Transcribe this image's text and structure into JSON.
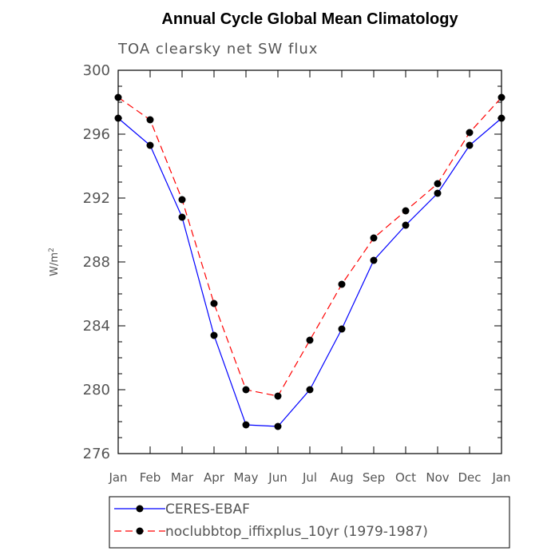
{
  "chart_data": {
    "type": "line",
    "title": "Annual Cycle Global Mean Climatology",
    "subtitle": "TOA clearsky net SW flux",
    "ylabel_base": "W/m",
    "ylabel_sup": "2",
    "categories": [
      "Jan",
      "Feb",
      "Mar",
      "Apr",
      "May",
      "Jun",
      "Jul",
      "Aug",
      "Sep",
      "Oct",
      "Nov",
      "Dec",
      "Jan"
    ],
    "ylim": [
      276,
      300
    ],
    "yticks": [
      276,
      280,
      284,
      288,
      292,
      296,
      300
    ],
    "series": [
      {
        "name": "CERES-EBAF",
        "color": "#0000ff",
        "style": "solid",
        "values": [
          297.0,
          295.3,
          290.8,
          283.4,
          277.8,
          277.7,
          280.0,
          283.8,
          288.1,
          290.3,
          292.3,
          295.3,
          297.0
        ]
      },
      {
        "name": "noclubbtop_iffixplus_10yr (1979-1987)",
        "color": "#ff0000",
        "style": "dashed",
        "values": [
          298.3,
          296.9,
          291.9,
          285.4,
          280.0,
          279.6,
          283.1,
          286.6,
          289.5,
          291.2,
          292.9,
          296.1,
          298.3
        ]
      }
    ],
    "marker_color": "#000000",
    "legend_position": "bottom"
  }
}
